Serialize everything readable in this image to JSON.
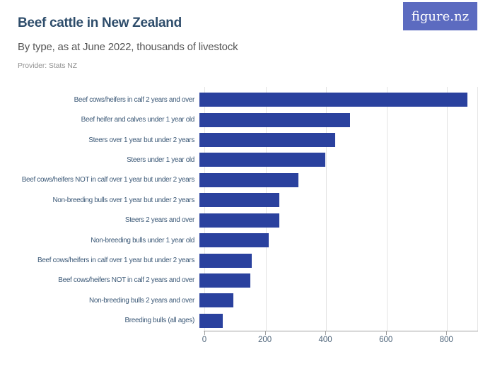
{
  "header": {
    "title": "Beef cattle in New Zealand",
    "subtitle": "By type, as at June 2022, thousands of livestock",
    "provider": "Provider: Stats NZ",
    "logo_text": "figure.nz"
  },
  "colors": {
    "bar": "#2a419e",
    "logo_bg": "#5c6bc0",
    "title": "#2e4d6b",
    "subtitle": "#555555",
    "provider": "#919191",
    "axis_label": "#3d5a78",
    "tick_label": "#51677c",
    "gridline": "#e4e4e4",
    "axis_line": "#9e9e9e"
  },
  "chart_data": {
    "type": "bar",
    "orientation": "horizontal",
    "title": "Beef cattle in New Zealand",
    "subtitle": "By type, as at June 2022, thousands of livestock",
    "unit": "thousands of livestock",
    "source": "Stats NZ",
    "xlim": [
      0,
      900
    ],
    "x_ticks": [
      0,
      200,
      400,
      600,
      800
    ],
    "grid": true,
    "legend": "none",
    "categories": [
      "Beef cows/heifers in calf 2 years and over",
      "Beef heifer and calves under 1 year old",
      "Steers over 1 year but under 2 years",
      "Steers under 1 year old",
      "Beef cows/heifers NOT in calf over 1 year but under 2 years",
      "Non-breeding bulls over 1 year but under 2 years",
      "Steers 2 years and over",
      "Non-breeding bulls under 1 year old",
      "Beef cows/heifers in calf over 1 year but under 2 years",
      "Beef cows/heifers NOT in calf 2 years and over",
      "Non-breeding bulls 2 years and over",
      "Breeding bulls (all ages)"
    ],
    "values": [
      887,
      497,
      448,
      416,
      327,
      265,
      263,
      230,
      172,
      169,
      112,
      76
    ]
  }
}
